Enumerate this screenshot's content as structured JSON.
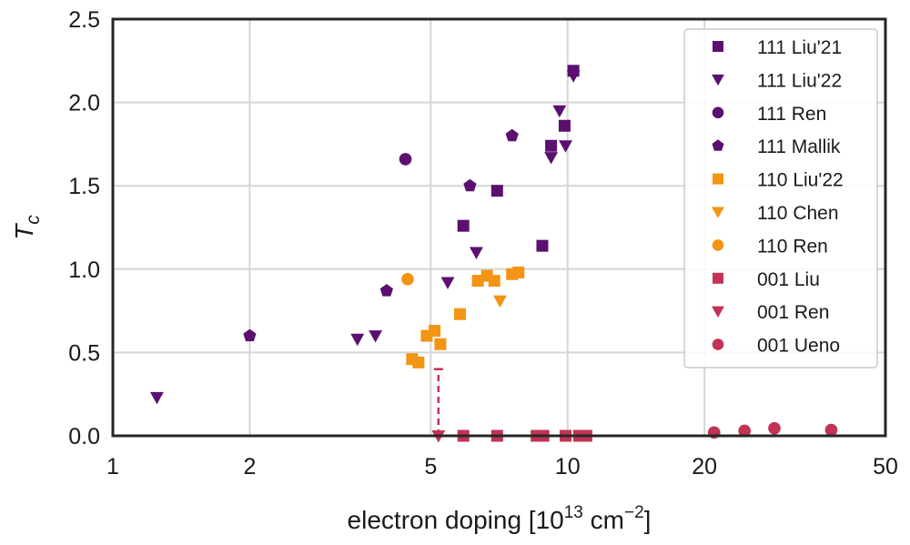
{
  "chart_data": {
    "type": "scatter",
    "title": "",
    "xlabel": "electron doping [10",
    "xlabel_exp": "13",
    "xlabel_unit": " cm",
    "xlabel_unit_exp": "−2",
    "xlabel_close": "]",
    "ylabel": "T",
    "ylabel_sub": "c",
    "xscale": "log",
    "xlim": [
      1,
      50
    ],
    "ylim": [
      0,
      2.5
    ],
    "xticks": [
      1,
      2,
      5,
      10,
      20,
      50
    ],
    "xtick_labels": [
      "1",
      "2",
      "5",
      "10",
      "20",
      "50"
    ],
    "yticks": [
      0,
      0.5,
      1.0,
      1.5,
      2.0,
      2.5
    ],
    "ytick_labels": [
      "0.0",
      "0.5",
      "1.0",
      "1.5",
      "2.0",
      "2.5"
    ],
    "grid": true,
    "legend_position": "top-right",
    "colors": {
      "purple": "#5b1070",
      "orange": "#f39413",
      "crimson": "#c23355"
    },
    "series": [
      {
        "name": "111 Liu'21",
        "marker": "square",
        "color": "#5b1070",
        "points": [
          [
            5.9,
            1.26
          ],
          [
            7.0,
            1.47
          ],
          [
            8.8,
            1.14
          ],
          [
            9.2,
            1.74
          ],
          [
            9.85,
            1.86
          ],
          [
            10.3,
            2.19
          ]
        ]
      },
      {
        "name": "111 Liu'22",
        "marker": "triangle-down",
        "color": "#5b1070",
        "points": [
          [
            1.25,
            0.23
          ],
          [
            3.45,
            0.58
          ],
          [
            3.78,
            0.6
          ],
          [
            5.45,
            0.92
          ],
          [
            6.3,
            1.1
          ],
          [
            9.2,
            1.67
          ],
          [
            9.6,
            1.95
          ],
          [
            9.9,
            1.74
          ],
          [
            10.3,
            2.16
          ]
        ]
      },
      {
        "name": "111 Ren",
        "marker": "circle",
        "color": "#5b1070",
        "points": [
          [
            4.4,
            1.66
          ]
        ]
      },
      {
        "name": "111 Mallik",
        "marker": "pentagon",
        "color": "#5b1070",
        "points": [
          [
            2.0,
            0.6
          ],
          [
            4.0,
            0.87
          ],
          [
            6.1,
            1.5
          ],
          [
            7.55,
            1.8
          ]
        ]
      },
      {
        "name": "110 Liu'22",
        "marker": "square",
        "color": "#f39413",
        "points": [
          [
            4.55,
            0.46
          ],
          [
            4.7,
            0.44
          ],
          [
            4.9,
            0.6
          ],
          [
            5.1,
            0.63
          ],
          [
            5.25,
            0.55
          ],
          [
            5.8,
            0.73
          ],
          [
            6.35,
            0.93
          ],
          [
            6.65,
            0.96
          ],
          [
            6.9,
            0.93
          ],
          [
            7.55,
            0.97
          ],
          [
            7.8,
            0.98
          ]
        ]
      },
      {
        "name": "110 Chen",
        "marker": "triangle-down",
        "color": "#f39413",
        "points": [
          [
            7.1,
            0.81
          ]
        ]
      },
      {
        "name": "110 Ren",
        "marker": "circle",
        "color": "#f39413",
        "points": [
          [
            4.45,
            0.94
          ]
        ]
      },
      {
        "name": "001 Liu",
        "marker": "square",
        "color": "#c23355",
        "points": [
          [
            5.9,
            0.0
          ],
          [
            7.0,
            0.0
          ],
          [
            8.55,
            0.0
          ],
          [
            8.85,
            0.0
          ],
          [
            9.9,
            0.0
          ],
          [
            10.6,
            0.0
          ],
          [
            11.0,
            0.0
          ]
        ]
      },
      {
        "name": "001 Ren",
        "marker": "triangle-down",
        "color": "#c23355",
        "points": [
          [
            5.2,
            0.0
          ]
        ]
      },
      {
        "name": "001 Ueno",
        "marker": "circle",
        "color": "#c23355",
        "points": [
          [
            21.0,
            0.02
          ],
          [
            24.5,
            0.03
          ],
          [
            28.5,
            0.045
          ],
          [
            38.0,
            0.035
          ]
        ]
      }
    ],
    "annotations": [
      {
        "type": "dashed-bound",
        "color": "#c23355",
        "x": 5.2,
        "y_from": 0.0,
        "y_to": 0.4
      }
    ]
  }
}
